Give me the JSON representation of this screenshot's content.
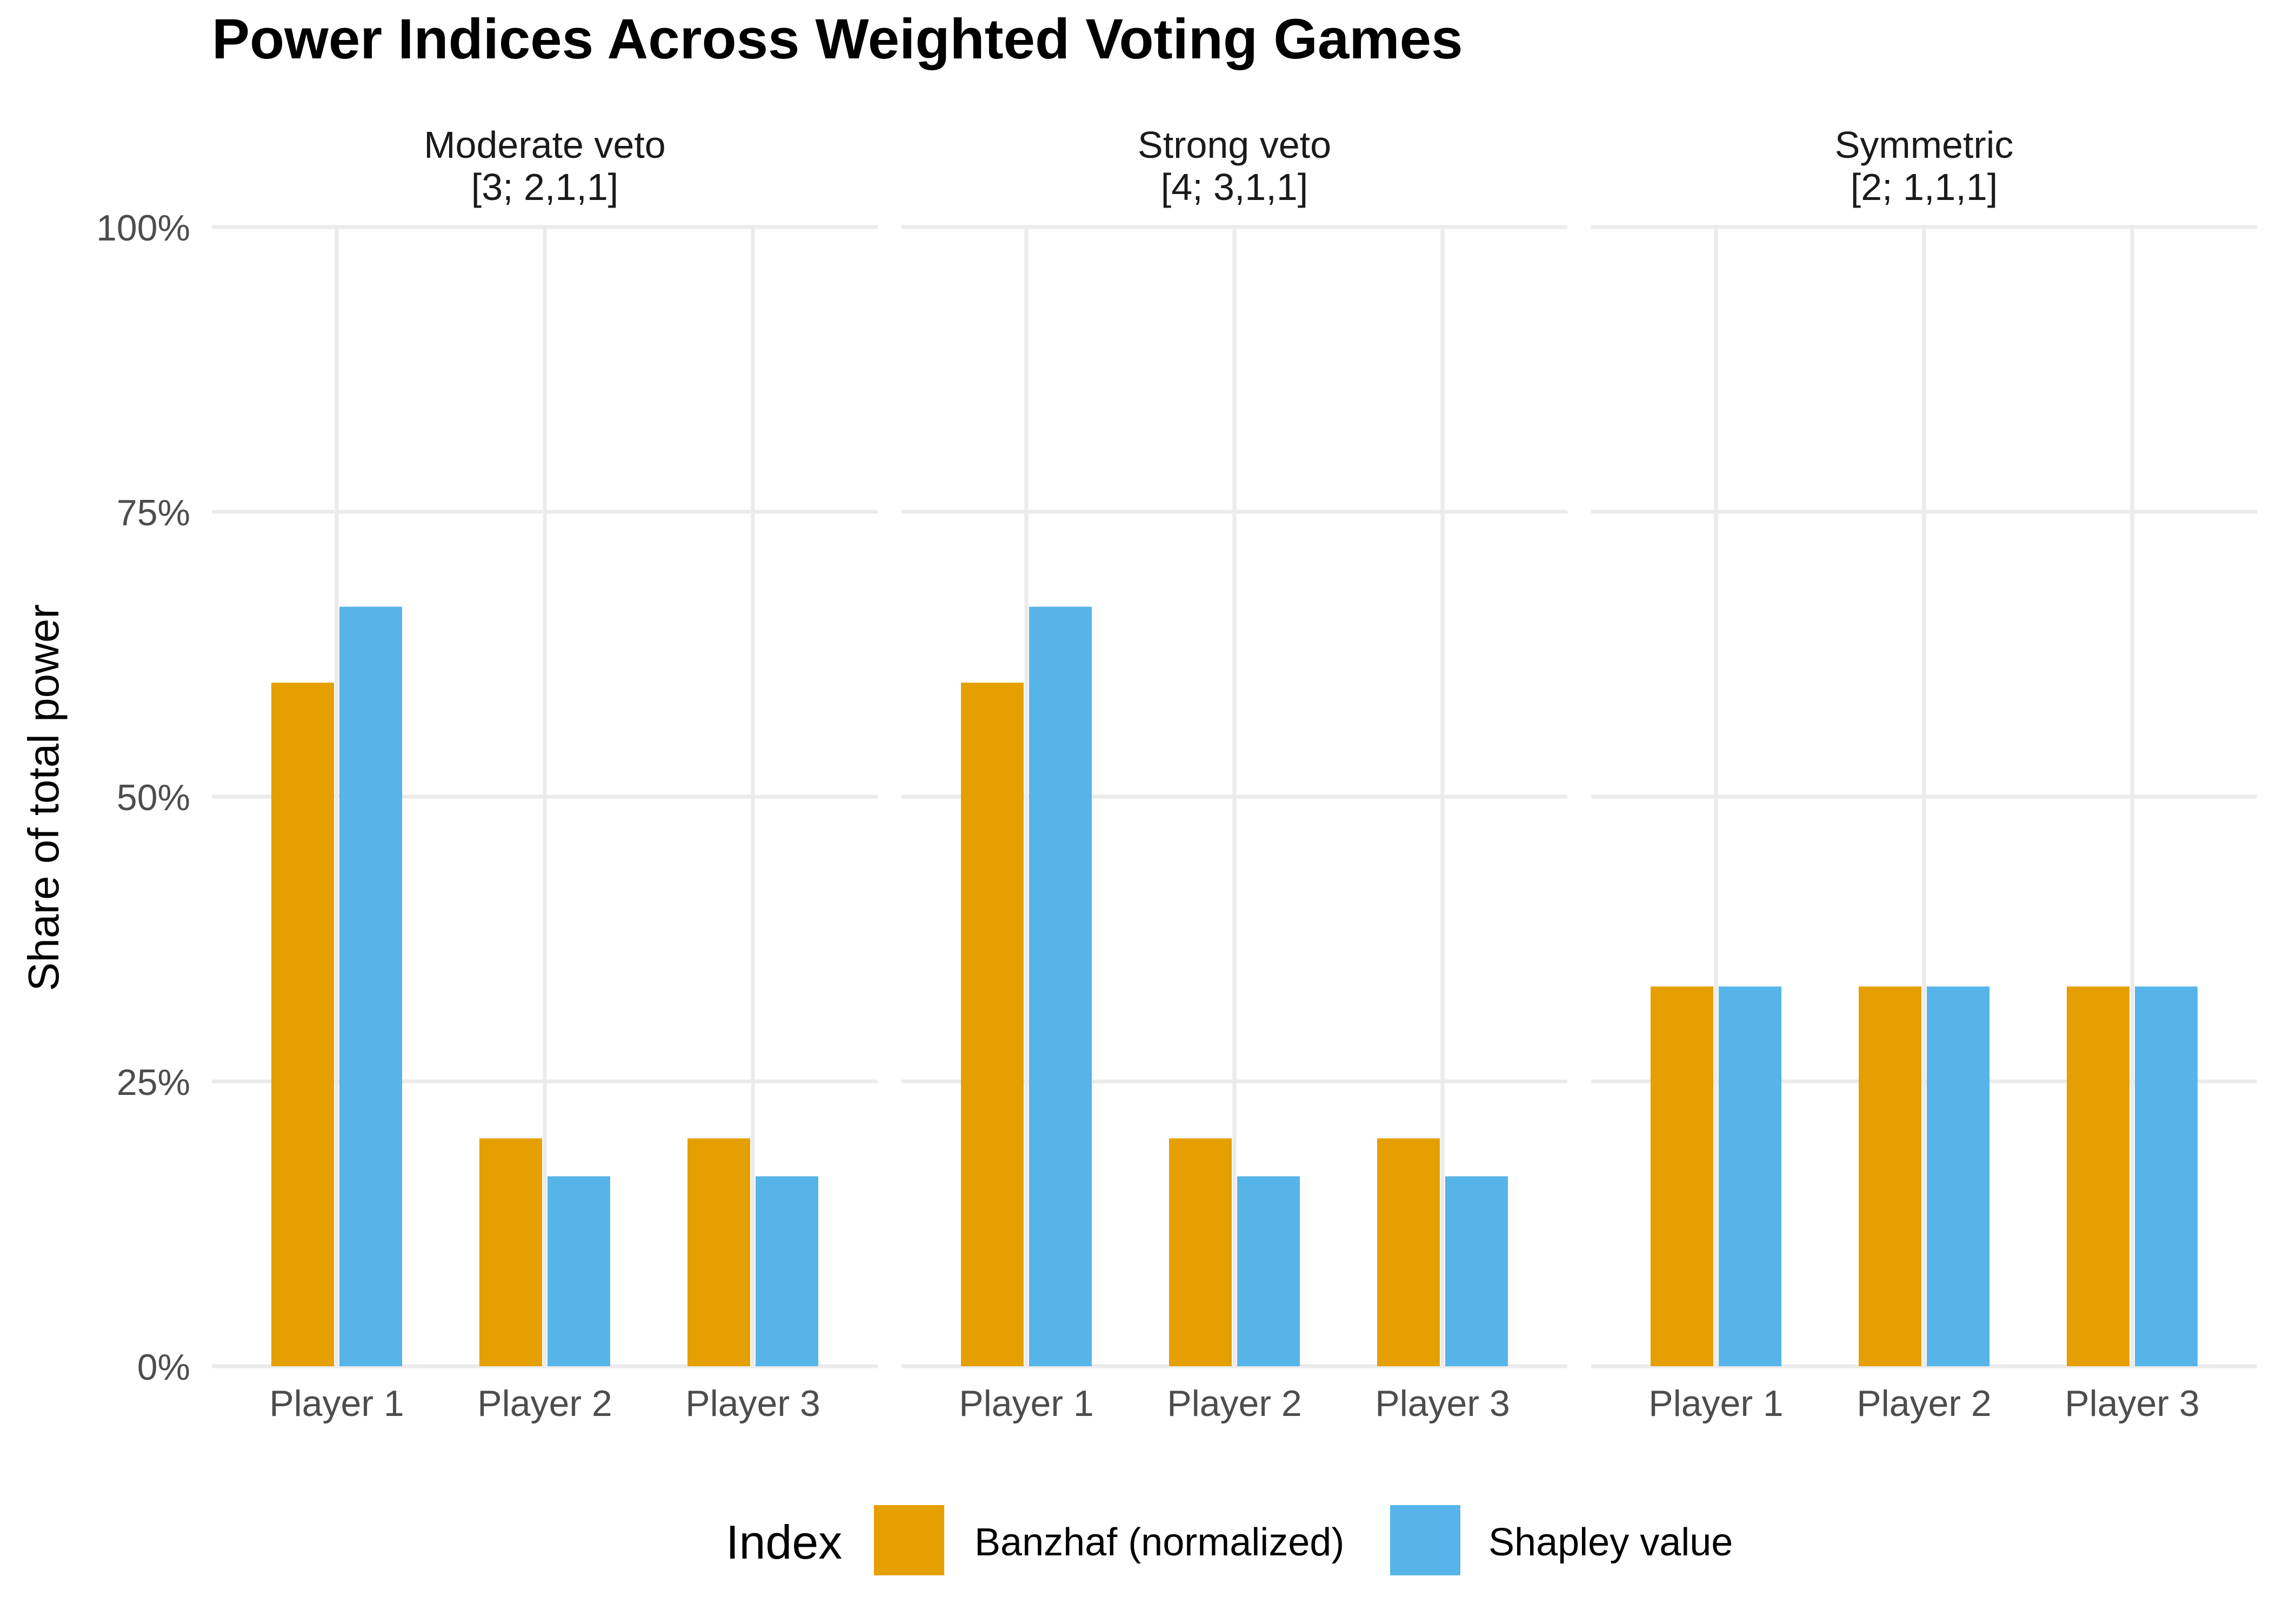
{
  "chart_data": {
    "type": "bar",
    "title": "Power Indices Across Weighted Voting Games",
    "ylabel": "Share of total power",
    "xlabel": "",
    "ylim": [
      0,
      1
    ],
    "y_ticks": [
      0,
      0.25,
      0.5,
      0.75,
      1.0
    ],
    "y_tick_labels": [
      "0%",
      "25%",
      "50%",
      "75%",
      "100%"
    ],
    "categories": [
      "Player 1",
      "Player 2",
      "Player 3"
    ],
    "grid": true,
    "legend": {
      "title": "Index",
      "position": "bottom",
      "entries": [
        "Banzhaf (normalized)",
        "Shapley value"
      ]
    },
    "colors": {
      "Banzhaf (normalized)": "#E69F00",
      "Shapley value": "#56B4E9"
    },
    "panels": [
      {
        "title_line1": "Moderate veto",
        "title_line2": "[3; 2,1,1]",
        "series": [
          {
            "name": "Banzhaf (normalized)",
            "values": [
              0.6,
              0.2,
              0.2
            ]
          },
          {
            "name": "Shapley value",
            "values": [
              0.6667,
              0.1667,
              0.1667
            ]
          }
        ]
      },
      {
        "title_line1": "Strong veto",
        "title_line2": "[4; 3,1,1]",
        "series": [
          {
            "name": "Banzhaf (normalized)",
            "values": [
              0.6,
              0.2,
              0.2
            ]
          },
          {
            "name": "Shapley value",
            "values": [
              0.6667,
              0.1667,
              0.1667
            ]
          }
        ]
      },
      {
        "title_line1": "Symmetric",
        "title_line2": "[2; 1,1,1]",
        "series": [
          {
            "name": "Banzhaf (normalized)",
            "values": [
              0.3333,
              0.3333,
              0.3333
            ]
          },
          {
            "name": "Shapley value",
            "values": [
              0.3333,
              0.3333,
              0.3333
            ]
          }
        ]
      }
    ]
  }
}
